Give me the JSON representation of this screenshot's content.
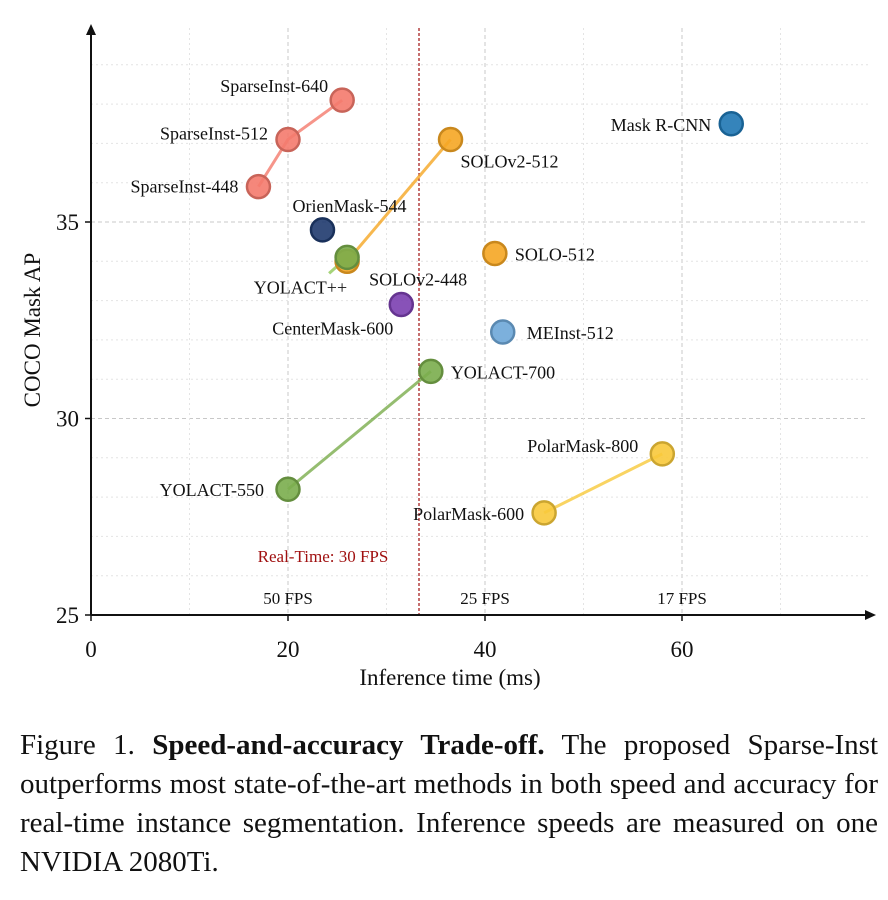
{
  "chart_data": {
    "type": "scatter",
    "xlabel": "Inference time (ms)",
    "ylabel": "COCO Mask AP",
    "xlim": [
      0,
      79
    ],
    "ylim": [
      25,
      39.9
    ],
    "xticks": [
      0,
      20,
      40,
      60
    ],
    "yticks": [
      25,
      30,
      35
    ],
    "grid": true,
    "series": [
      {
        "color": "#f47a6d",
        "points": [
          {
            "label": "SparseInst-448",
            "x": 17.0,
            "y": 35.9
          },
          {
            "label": "SparseInst-512",
            "x": 20.0,
            "y": 37.1
          },
          {
            "label": "SparseInst-640",
            "x": 25.5,
            "y": 38.1
          }
        ]
      },
      {
        "color": "#f5a623",
        "points": [
          {
            "label": "SOLOv2-448",
            "x": 26.0,
            "y": 34.0
          },
          {
            "label": "SOLOv2-512",
            "x": 36.5,
            "y": 37.1
          }
        ]
      },
      {
        "color": "#f5a623",
        "points": [
          {
            "label": "SOLO-512",
            "x": 41.0,
            "y": 34.2
          }
        ]
      },
      {
        "color": "#1f77b4",
        "points": [
          {
            "label": "Mask R-CNN",
            "x": 65.0,
            "y": 37.5
          }
        ]
      },
      {
        "color": "#1f3a6e",
        "points": [
          {
            "label": "OrienMask-544",
            "x": 23.5,
            "y": 34.8
          }
        ]
      },
      {
        "color": "#7aad4c",
        "points": [
          {
            "label": "YOLACT++",
            "x": 26.0,
            "y": 34.1
          }
        ]
      },
      {
        "color": "#7b3fb0",
        "points": [
          {
            "label": "CenterMask-600",
            "x": 31.5,
            "y": 32.9
          }
        ]
      },
      {
        "color": "#6ea7d8",
        "points": [
          {
            "label": "MEInst-512",
            "x": 41.8,
            "y": 32.2
          }
        ]
      },
      {
        "color": "#7aad4c",
        "points": [
          {
            "label": "YOLACT-550",
            "x": 20.0,
            "y": 28.2
          },
          {
            "label": "YOLACT-700",
            "x": 34.5,
            "y": 31.2
          }
        ]
      },
      {
        "color": "#f8c93b",
        "points": [
          {
            "label": "PolarMask-600",
            "x": 46.0,
            "y": 27.6
          },
          {
            "label": "PolarMask-800",
            "x": 58.0,
            "y": 29.1
          }
        ]
      }
    ],
    "realtime_line": {
      "x": 33.3,
      "label": "Real-Time: 30 FPS",
      "color": "#a01010"
    },
    "fps_labels": [
      {
        "x": 20,
        "text": "50 FPS"
      },
      {
        "x": 40,
        "text": "25 FPS"
      },
      {
        "x": 60,
        "text": "17 FPS"
      }
    ]
  },
  "caption": {
    "prefix": "Figure 1.",
    "bold": "Speed-and-accuracy Trade-off.",
    "body": "The proposed Sparse-Inst outperforms most state-of-the-art methods in both speed and accuracy for real-time instance segmentation. Inference speeds are measured on one NVIDIA 2080Ti."
  }
}
